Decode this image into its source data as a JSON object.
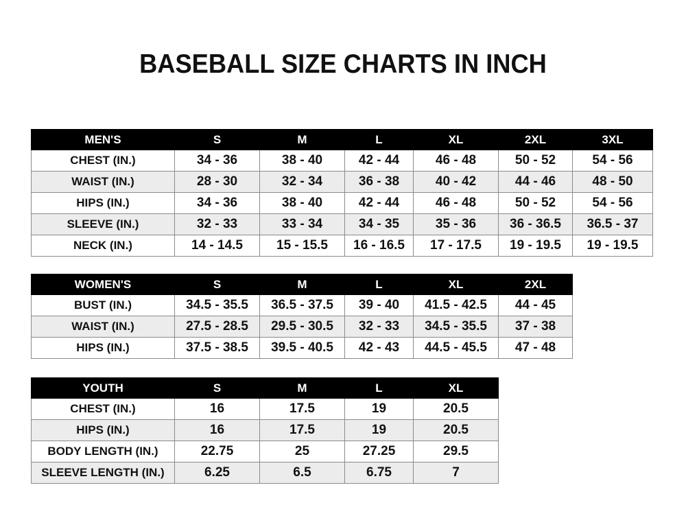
{
  "title": "BASEBALL SIZE CHARTS IN INCH",
  "tables": {
    "men": {
      "headers": [
        "MEN'S",
        "S",
        "M",
        "L",
        "XL",
        "2XL",
        "3XL"
      ],
      "rows": [
        [
          "CHEST (IN.)",
          "34 - 36",
          "38 - 40",
          "42 - 44",
          "46 - 48",
          "50 - 52",
          "54 - 56"
        ],
        [
          "WAIST (IN.)",
          "28 - 30",
          "32 - 34",
          "36 - 38",
          "40 - 42",
          "44 - 46",
          "48 - 50"
        ],
        [
          "HIPS (IN.)",
          "34 - 36",
          "38 - 40",
          "42 - 44",
          "46 - 48",
          "50 - 52",
          "54 - 56"
        ],
        [
          "SLEEVE (IN.)",
          "32 - 33",
          "33 - 34",
          "34 - 35",
          "35 - 36",
          "36 - 36.5",
          "36.5 - 37"
        ],
        [
          "NECK (IN.)",
          "14 - 14.5",
          "15 - 15.5",
          "16 - 16.5",
          "17 - 17.5",
          "19 - 19.5",
          "19 - 19.5"
        ]
      ]
    },
    "women": {
      "headers": [
        "WOMEN'S",
        "S",
        "M",
        "L",
        "XL",
        "2XL"
      ],
      "rows": [
        [
          "BUST (IN.)",
          "34.5 - 35.5",
          "36.5 - 37.5",
          "39 - 40",
          "41.5 - 42.5",
          "44 - 45"
        ],
        [
          "WAIST (IN.)",
          "27.5 - 28.5",
          "29.5 - 30.5",
          "32 - 33",
          "34.5 - 35.5",
          "37 - 38"
        ],
        [
          "HIPS (IN.)",
          "37.5 - 38.5",
          "39.5 - 40.5",
          "42 - 43",
          "44.5 - 45.5",
          "47 - 48"
        ]
      ]
    },
    "youth": {
      "headers": [
        "YOUTH",
        "S",
        "M",
        "L",
        "XL"
      ],
      "rows": [
        [
          "CHEST (IN.)",
          "16",
          "17.5",
          "19",
          "20.5"
        ],
        [
          "HIPS (IN.)",
          "16",
          "17.5",
          "19",
          "20.5"
        ],
        [
          "BODY LENGTH (IN.)",
          "22.75",
          "25",
          "27.25",
          "29.5"
        ],
        [
          "SLEEVE LENGTH (IN.)",
          "6.25",
          "6.5",
          "6.75",
          "7"
        ]
      ]
    }
  }
}
